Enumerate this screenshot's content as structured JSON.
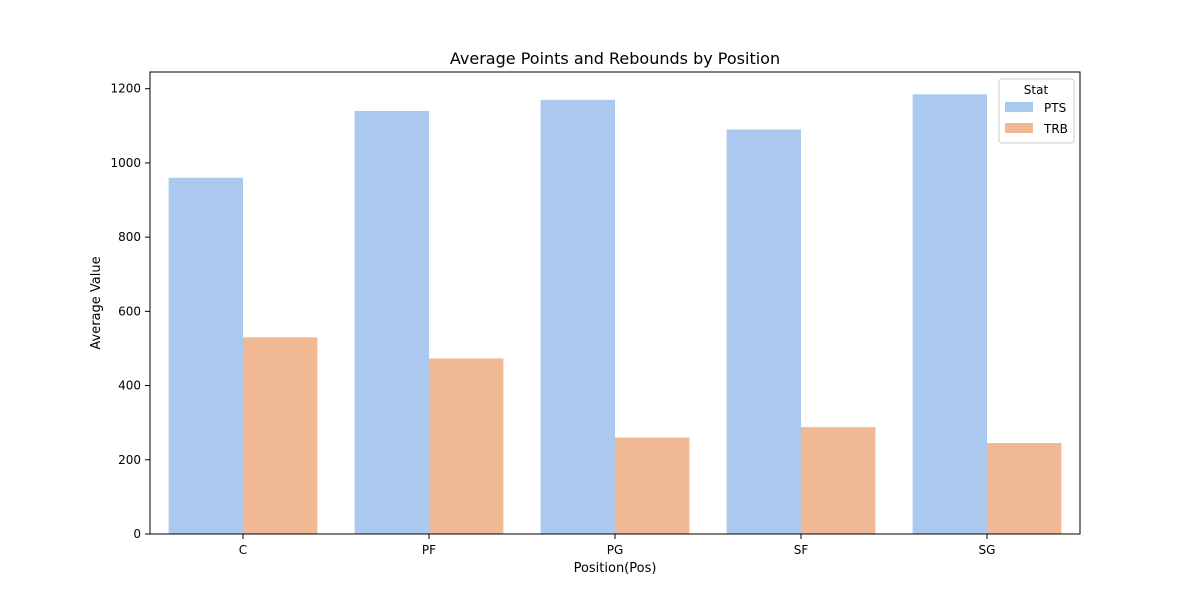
{
  "chart_data": {
    "type": "bar",
    "title": "Average Points and Rebounds by Position",
    "xlabel": "Position(Pos)",
    "ylabel": "Average Value",
    "categories": [
      "C",
      "PF",
      "PG",
      "SF",
      "SG"
    ],
    "ylim": [
      0,
      1245
    ],
    "yticks": [
      0,
      200,
      400,
      600,
      800,
      1000,
      1200
    ],
    "grid": false,
    "legend": {
      "title": "Stat",
      "placement": "top-right"
    },
    "series": [
      {
        "name": "PTS",
        "color": "#abc9ee",
        "values": [
          960,
          1140,
          1170,
          1090,
          1185
        ]
      },
      {
        "name": "TRB",
        "color": "#f0b893",
        "values": [
          530,
          473,
          260,
          288,
          245
        ]
      }
    ]
  }
}
